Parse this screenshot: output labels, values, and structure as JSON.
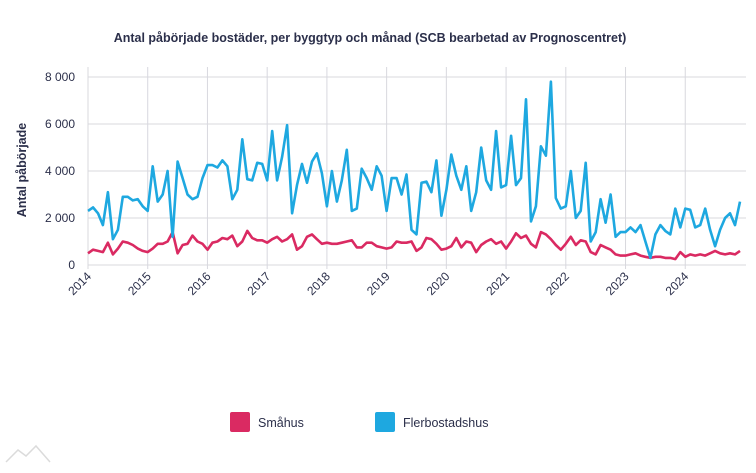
{
  "chart_data": {
    "type": "line",
    "title": "Antal påbörjade bostäder, per byggtyp och månad (SCB bearbetad av Prognoscentret)",
    "ylabel": "Antal påbörjade",
    "xlabel": "",
    "ylim": [
      0,
      8000
    ],
    "yticks": [
      0,
      2000,
      4000,
      6000,
      8000
    ],
    "ytick_labels": [
      "0",
      "2 000",
      "4 000",
      "6 000",
      "8 000"
    ],
    "xticks": [
      "2014",
      "2015",
      "2016",
      "2017",
      "2018",
      "2019",
      "2020",
      "2021",
      "2022",
      "2023",
      "2024"
    ],
    "x_frequency": "monthly",
    "grid": true,
    "legend_placement": "bottom",
    "series": [
      {
        "name": "Småhus",
        "color": "#da2a62",
        "values_by_year": {
          "2014": [
            500,
            650,
            600,
            550,
            950,
            450,
            700,
            1000,
            950,
            850,
            700,
            600
          ],
          "2015": [
            550,
            700,
            900,
            900,
            1000,
            1400,
            500,
            850,
            900,
            1250,
            1000,
            900
          ],
          "2016": [
            650,
            950,
            1000,
            1150,
            1100,
            1250,
            800,
            1000,
            1450,
            1150,
            1050,
            1050
          ],
          "2017": [
            950,
            1100,
            1200,
            1000,
            1100,
            1300,
            650,
            800,
            1200,
            1300,
            1100,
            900
          ],
          "2018": [
            950,
            900,
            900,
            950,
            1000,
            1050,
            750,
            750,
            950,
            950,
            800,
            750
          ],
          "2019": [
            700,
            750,
            1000,
            950,
            950,
            1000,
            600,
            750,
            1150,
            1100,
            900,
            650
          ],
          "2020": [
            700,
            800,
            1150,
            750,
            1000,
            950,
            550,
            850,
            1000,
            1100,
            900,
            1000
          ],
          "2021": [
            700,
            1000,
            1350,
            1150,
            1250,
            900,
            750,
            1400,
            1300,
            1100,
            850,
            650
          ],
          "2022": [
            900,
            1200,
            850,
            1050,
            1000,
            550,
            450,
            850,
            750,
            650,
            450,
            400
          ],
          "2023": [
            400,
            450,
            500,
            400,
            350,
            300,
            350,
            350,
            300,
            300,
            250,
            550
          ],
          "2024": [
            350,
            450,
            400,
            450,
            400,
            500,
            600,
            500,
            450,
            500,
            450,
            600
          ]
        }
      },
      {
        "name": "Flerbostadshus",
        "color": "#1ea8e0",
        "values_by_year": {
          "2014": [
            2300,
            2450,
            2200,
            1700,
            3100,
            1100,
            1500,
            2900,
            2900,
            2750,
            2800,
            2500
          ],
          "2015": [
            2300,
            4200,
            2700,
            3000,
            4000,
            1200,
            4400,
            3700,
            3000,
            2800,
            2900,
            3700
          ],
          "2016": [
            4250,
            4250,
            4150,
            4450,
            4200,
            2800,
            3200,
            5350,
            3650,
            3600,
            4350,
            4300
          ],
          "2017": [
            3600,
            5700,
            3600,
            4600,
            5950,
            2200,
            3400,
            4300,
            3500,
            4400,
            4750,
            3900
          ],
          "2018": [
            2500,
            4000,
            2700,
            3600,
            4900,
            2300,
            2400,
            4100,
            3700,
            3200,
            4200,
            3800
          ],
          "2019": [
            2300,
            3700,
            3700,
            3000,
            3850,
            1500,
            1300,
            3500,
            3550,
            3100,
            4450,
            2100
          ],
          "2020": [
            3200,
            4700,
            3800,
            3200,
            4200,
            2300,
            3100,
            5000,
            3600,
            3200,
            5700,
            3300
          ],
          "2021": [
            3400,
            5500,
            3400,
            3700,
            7050,
            1850,
            2500,
            5050,
            4650,
            7800,
            2850,
            2400
          ],
          "2022": [
            2500,
            4000,
            2000,
            2300,
            4350,
            1000,
            1400,
            2800,
            1800,
            3000,
            1200,
            1400
          ],
          "2023": [
            1400,
            1600,
            1400,
            1700,
            1000,
            300,
            1300,
            1700,
            1450,
            1300,
            2400,
            1600
          ],
          "2024": [
            2400,
            2350,
            1600,
            1700,
            2400,
            1500,
            800,
            1500,
            2000,
            2200,
            1700,
            2700
          ]
        }
      }
    ]
  }
}
